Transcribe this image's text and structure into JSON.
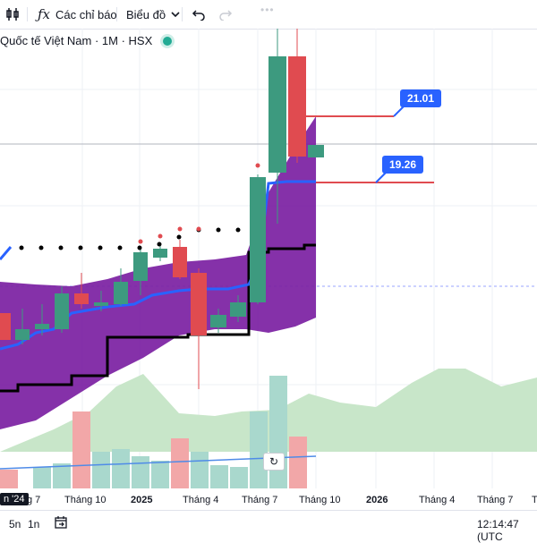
{
  "toolbar": {
    "indicators_icon": "fx-icon",
    "indicators_label": "Các chỉ báo",
    "chart_type_label": "Biểu đồ",
    "undo_icon": "undo-icon",
    "redo_icon": "redo-icon",
    "dots": "•••"
  },
  "symbol": {
    "title": "Quốc tế Việt Nam · 1M · HSX",
    "status_color": "#22ab94"
  },
  "price_tags": [
    {
      "label": "21.01"
    },
    {
      "label": "19.26"
    }
  ],
  "xaxis": {
    "labels": [
      "n '24",
      "g 7",
      "Tháng 10",
      "2025",
      "Tháng 4",
      "Tháng 7",
      "Tháng 10",
      "2026",
      "Tháng 4",
      "Tháng 7",
      "T"
    ]
  },
  "bottom": {
    "range_5y": "5n",
    "range_1y": "1n",
    "goto_icon": "calendar-goto-icon",
    "clock": "12:14:47 (UTC"
  },
  "colors": {
    "up": "#3d9a7f",
    "down": "#e04b50",
    "cloud": "#7b1fa2",
    "volume_up": "#a9d8cd",
    "volume_down": "#f2a7a8",
    "area": "#c8e6c9",
    "accent": "#2962ff"
  }
}
